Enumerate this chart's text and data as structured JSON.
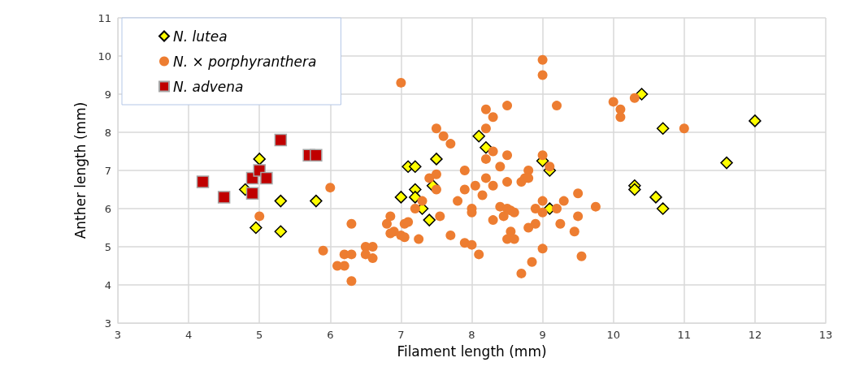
{
  "chart_data": {
    "type": "scatter",
    "xlabel": "Filament length (mm)",
    "ylabel": "Anther length (mm)",
    "xlim": [
      3,
      13
    ],
    "xticks": [
      3,
      4,
      5,
      6,
      7,
      8,
      9,
      10,
      11,
      12,
      13
    ],
    "ylim": [
      3,
      11
    ],
    "yticks": [
      3,
      4,
      5,
      6,
      7,
      8,
      9,
      10,
      11
    ],
    "grid": true,
    "legend": "top left",
    "series": [
      {
        "name": "N. lutea",
        "color": "#ffff00",
        "marker": "diamond",
        "x": [
          4.8,
          5,
          4.95,
          5.3,
          5.3,
          5.8,
          7,
          7.1,
          7.2,
          7.2,
          7.2,
          7.3,
          7.4,
          7.45,
          7.5,
          8.1,
          8.2,
          9,
          9.1,
          9.1,
          10.3,
          10.3,
          10.4,
          10.6,
          10.7,
          10.7,
          11.6,
          12
        ],
        "values": [
          6.5,
          7.3,
          5.5,
          6.2,
          5.4,
          6.2,
          6.3,
          7.1,
          7.1,
          6.5,
          6.3,
          6.0,
          5.7,
          6.6,
          7.3,
          7.9,
          7.6,
          7.25,
          6.0,
          7.0,
          6.6,
          6.5,
          9.0,
          6.3,
          8.1,
          6.0,
          7.2,
          8.3
        ]
      },
      {
        "name": "N. × porphyranthera",
        "color": "#ed7d31",
        "marker": "circle",
        "x": [
          5,
          6,
          5.9,
          6.1,
          6.2,
          6.2,
          6.3,
          6.3,
          6.3,
          6.5,
          6.5,
          6.6,
          6.6,
          6.8,
          6.85,
          6.9,
          6.85,
          7,
          7.05,
          7.05,
          7.1,
          7,
          7.25,
          7.3,
          7.2,
          7.4,
          7.5,
          7.5,
          7.5,
          7.6,
          7.7,
          7.55,
          7.7,
          7.8,
          7.9,
          7.9,
          7.9,
          8,
          8,
          8,
          8.05,
          8.1,
          8.15,
          8.2,
          8.2,
          8.2,
          8.2,
          8.3,
          8.3,
          8.3,
          8.3,
          8.4,
          8.4,
          8.45,
          8.5,
          8.5,
          8.5,
          8.5,
          8.55,
          8.55,
          8.5,
          8.6,
          8.6,
          8.7,
          8.7,
          8.75,
          8.8,
          8.8,
          8.8,
          8.85,
          8.9,
          8.9,
          9,
          9,
          9,
          9,
          9,
          9,
          9.1,
          9.2,
          9.2,
          9.25,
          9.3,
          9.45,
          9.5,
          9.5,
          9.55,
          9.75,
          10,
          10.1,
          10.1,
          10.3,
          11
        ],
        "values": [
          5.8,
          6.55,
          4.9,
          4.5,
          4.8,
          4.5,
          4.1,
          5.6,
          4.8,
          5.0,
          4.8,
          5.0,
          4.7,
          5.6,
          5.8,
          5.4,
          5.35,
          5.3,
          5.6,
          5.25,
          5.65,
          9.3,
          5.2,
          6.2,
          6.0,
          6.8,
          6.9,
          6.5,
          8.1,
          7.9,
          7.7,
          5.8,
          5.3,
          6.2,
          5.1,
          7.0,
          6.5,
          6.0,
          5.9,
          5.05,
          6.6,
          4.8,
          6.35,
          8.1,
          8.6,
          7.3,
          6.8,
          8.4,
          7.5,
          6.6,
          5.7,
          7.1,
          6.05,
          5.8,
          8.7,
          7.4,
          6.7,
          6.0,
          5.95,
          5.4,
          5.2,
          5.2,
          5.9,
          6.7,
          4.3,
          6.8,
          7.0,
          6.8,
          5.5,
          4.6,
          6.0,
          5.6,
          9.9,
          9.5,
          7.4,
          6.2,
          5.9,
          4.95,
          7.1,
          8.7,
          6.0,
          5.6,
          6.2,
          5.4,
          5.8,
          6.4,
          4.75,
          6.05,
          8.8,
          8.6,
          8.4,
          8.9,
          8.1
        ]
      },
      {
        "name": "N. advena",
        "color": "#c00000",
        "marker": "square",
        "x": [
          4.2,
          4.5,
          4.9,
          4.9,
          5,
          5.1,
          5.3,
          5.7,
          5.8
        ],
        "values": [
          6.7,
          6.3,
          6.8,
          6.4,
          7.0,
          6.8,
          7.8,
          7.4,
          7.4
        ]
      }
    ]
  }
}
